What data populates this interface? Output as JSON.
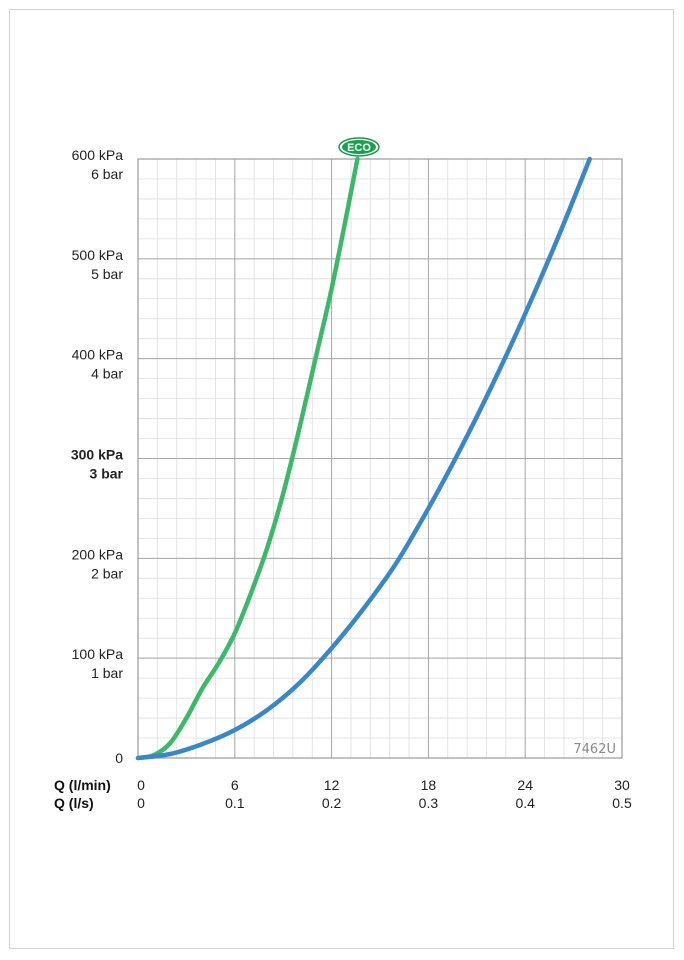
{
  "chart_data": {
    "type": "line",
    "code": "7462U",
    "eco_badge": "ECO",
    "x_axis": {
      "primary_label": "Q (l/min)",
      "secondary_label": "Q (l/s)",
      "ticks_lmin": [
        "0",
        "6",
        "12",
        "18",
        "24",
        "30"
      ],
      "ticks_ls": [
        "0",
        "0.1",
        "0.2",
        "0.3",
        "0.4",
        "0.5"
      ],
      "xlim": [
        0,
        30
      ]
    },
    "y_axis": {
      "ticks": [
        {
          "value": 0,
          "kpa": "0",
          "bar": "",
          "bold": false
        },
        {
          "value": 100,
          "kpa": "100 kPa",
          "bar": "1 bar",
          "bold": false
        },
        {
          "value": 200,
          "kpa": "200 kPa",
          "bar": "2 bar",
          "bold": false
        },
        {
          "value": 300,
          "kpa": "300 kPa",
          "bar": "3 bar",
          "bold": true
        },
        {
          "value": 400,
          "kpa": "400 kPa",
          "bar": "4 bar",
          "bold": false
        },
        {
          "value": 500,
          "kpa": "500 kPa",
          "bar": "5 bar",
          "bold": false
        },
        {
          "value": 600,
          "kpa": "600 kPa",
          "bar": "6 bar",
          "bold": false
        }
      ],
      "ylim": [
        0,
        600
      ]
    },
    "grid": true,
    "series": [
      {
        "color": "#3cb868",
        "x": [
          0,
          1,
          2,
          3,
          4,
          5,
          6,
          7,
          8,
          9,
          10,
          11,
          12,
          13,
          13.6
        ],
        "y": [
          0,
          3,
          15,
          40,
          70,
          95,
          125,
          165,
          210,
          265,
          330,
          400,
          470,
          550,
          600
        ]
      },
      {
        "color": "#3a87c8",
        "x": [
          0,
          2,
          4,
          6,
          8,
          10,
          12,
          14,
          16,
          18,
          20,
          22,
          24,
          26,
          28
        ],
        "y": [
          0,
          4,
          14,
          28,
          48,
          75,
          110,
          150,
          195,
          250,
          310,
          375,
          445,
          520,
          600
        ]
      }
    ]
  }
}
